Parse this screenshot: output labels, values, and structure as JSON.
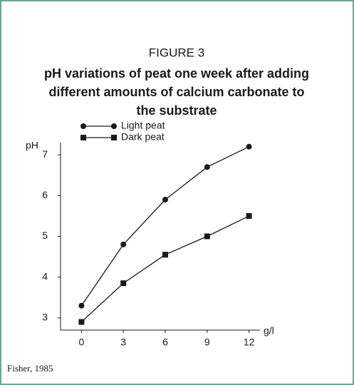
{
  "chart_data": {
    "type": "line",
    "figure_label": "FIGURE 3",
    "title": [
      "pH variations of peat one week after adding",
      "different amounts of calcium carbonate to",
      "the substrate"
    ],
    "y_label": "pH",
    "x_label": "g/l",
    "x": [
      0,
      3,
      6,
      9,
      12
    ],
    "series": [
      {
        "name": "Light peat",
        "color": "#1a1a1a",
        "marker": "circle",
        "values": [
          3.3,
          4.8,
          5.9,
          6.7,
          7.2
        ]
      },
      {
        "name": "Dark peat",
        "color": "#1a1a1a",
        "marker": "square",
        "values": [
          2.9,
          3.85,
          4.55,
          5.0,
          5.5
        ]
      }
    ],
    "xlim": [
      -1.5,
      13
    ],
    "xticks": [
      0,
      3,
      6,
      9,
      12
    ],
    "ylim": [
      2.7,
      7.3
    ],
    "yticks": [
      3,
      4,
      5,
      6,
      7
    ],
    "legend": "upper left",
    "source": "Fisher, 1985"
  }
}
